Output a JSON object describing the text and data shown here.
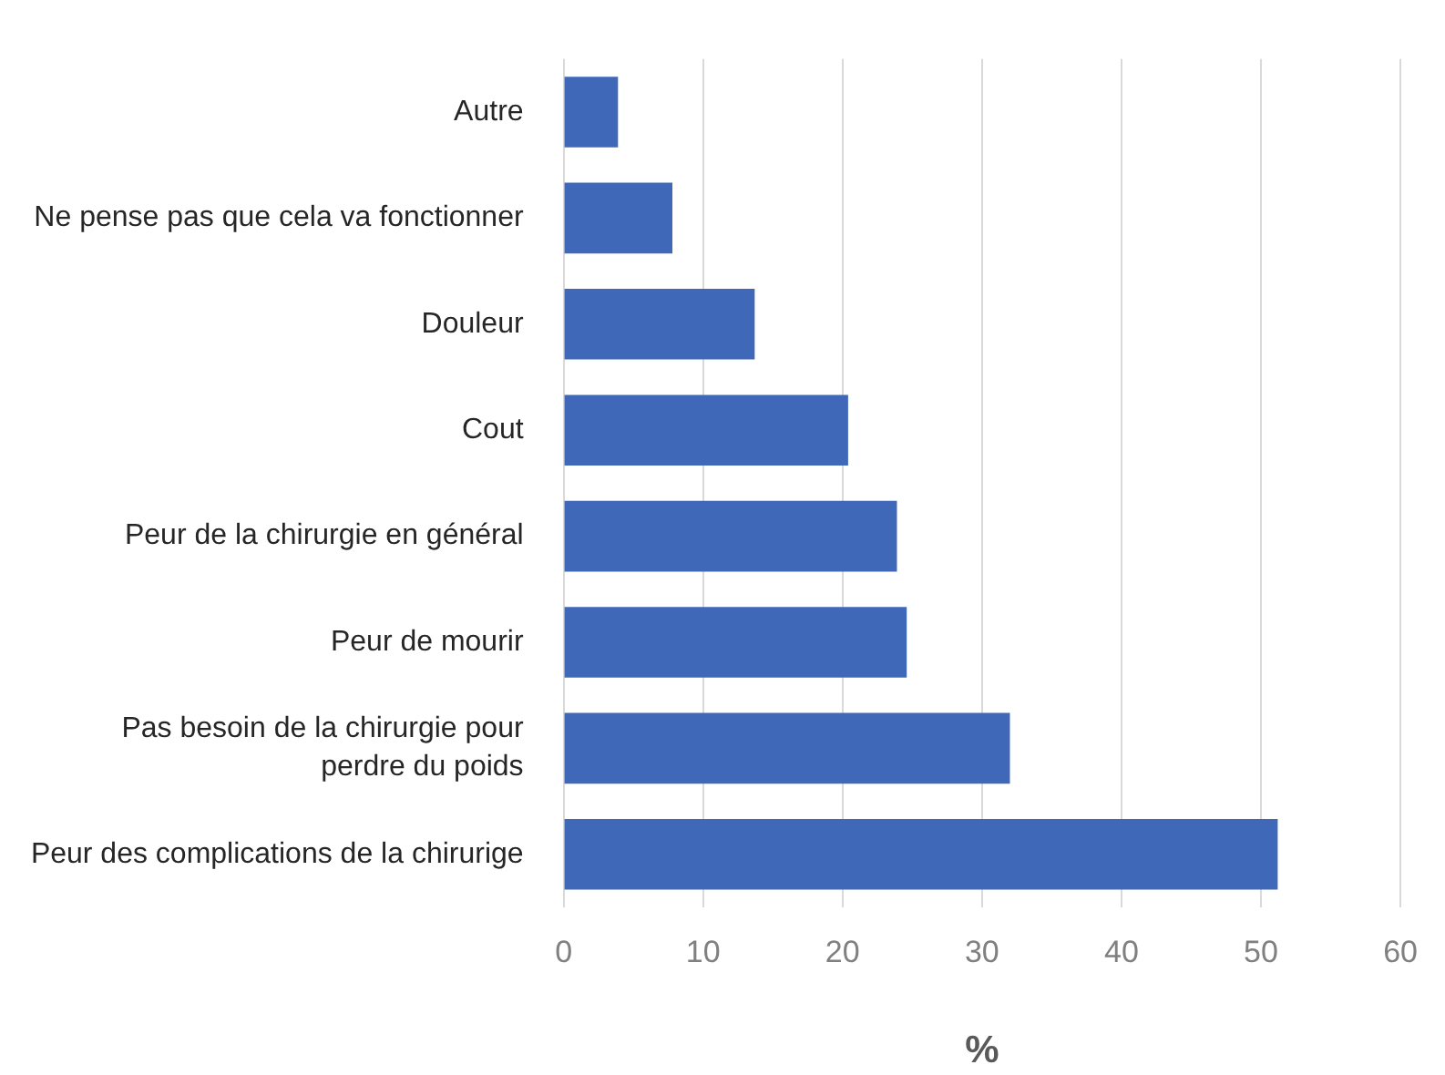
{
  "chart_data": {
    "type": "bar",
    "orientation": "horizontal",
    "categories": [
      "Autre",
      "Ne pense pas que cela va fonctionner",
      "Douleur",
      "Cout",
      "Peur de la chirurgie en général",
      "Peur de mourir",
      "Pas besoin de la chirurgie pour\nperdre du poids",
      "Peur des complications de la chirurige"
    ],
    "values": [
      3.9,
      7.8,
      13.7,
      20.4,
      23.9,
      24.6,
      32.0,
      51.2
    ],
    "color": "#4068b8",
    "xlabel": "%",
    "xlim": [
      0,
      60
    ],
    "xticks": [
      0,
      10,
      20,
      30,
      40,
      50,
      60
    ],
    "grid": "x"
  }
}
